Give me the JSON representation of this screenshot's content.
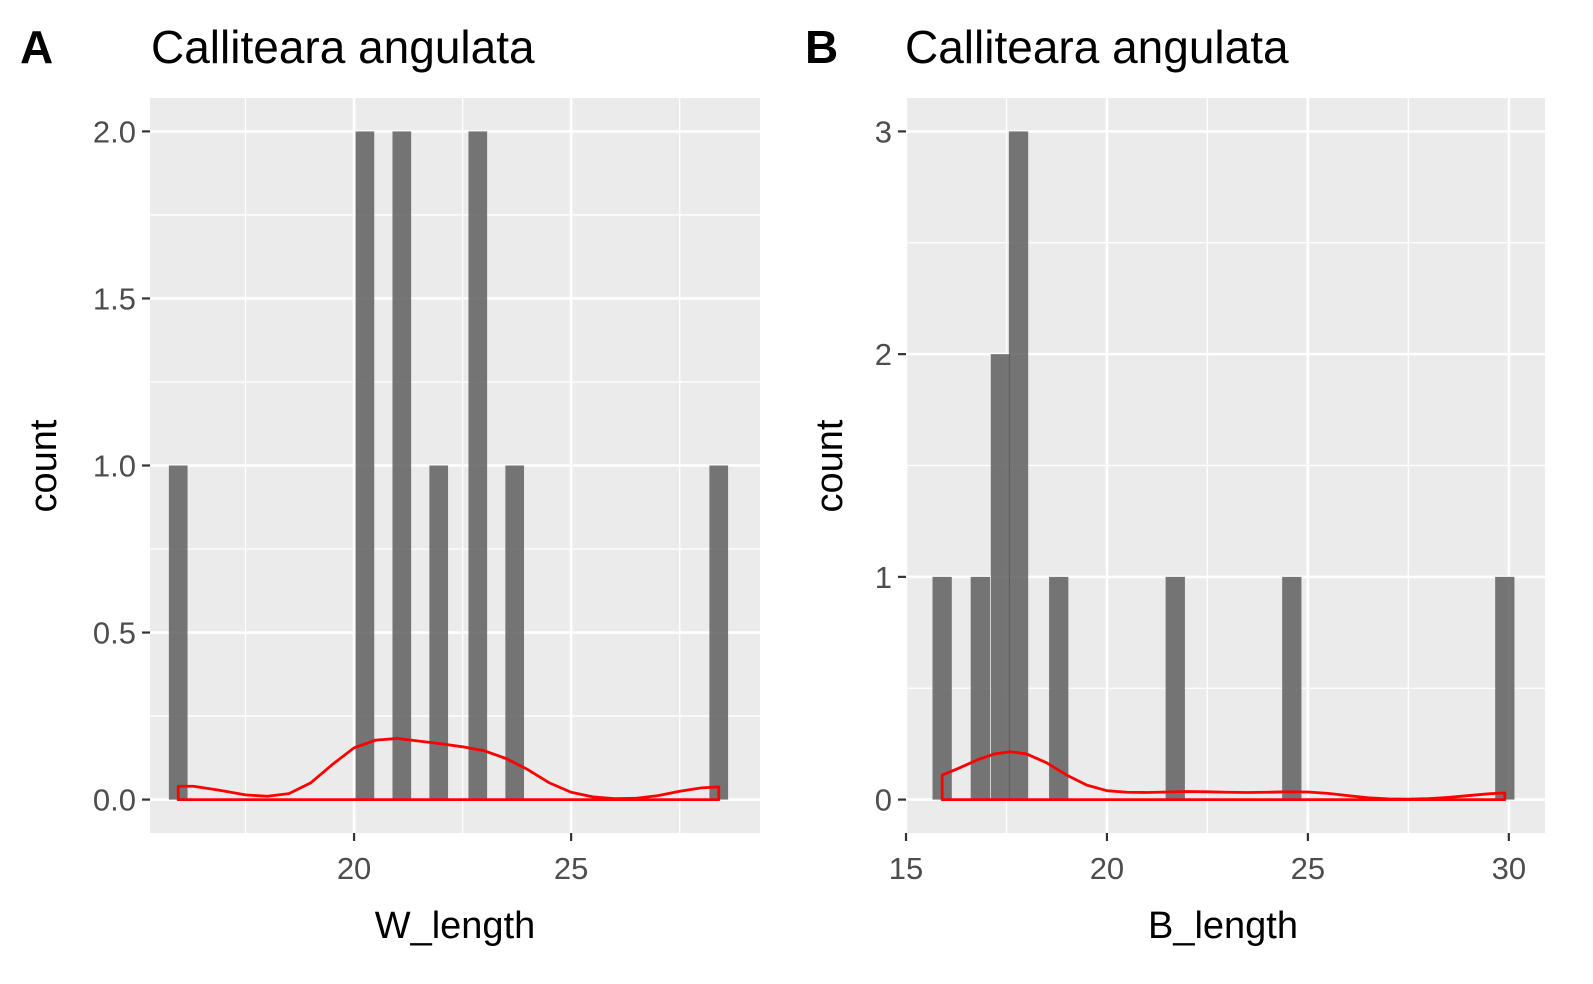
{
  "panels": [
    {
      "letter": "A",
      "title": "Calliteara angulata",
      "chart_data": {
        "type": "bar",
        "title": "Calliteara angulata",
        "xlabel": "W_length",
        "ylabel": "count",
        "xlim": [
          15.3,
          29.35
        ],
        "ylim": [
          -0.1,
          2.1
        ],
        "xticks": [
          20,
          25
        ],
        "xtick_labels": [
          "20",
          "25"
        ],
        "xminor": [
          17.5,
          22.5,
          27.5
        ],
        "yticks": [
          0,
          0.5,
          1,
          1.5,
          2
        ],
        "ytick_labels": [
          "0.0",
          "0.5",
          "1.0",
          "1.5",
          "2.0"
        ],
        "yminor": [
          0.25,
          0.75,
          1.25,
          1.75
        ],
        "bin_width": 0.43,
        "bars": [
          {
            "x": 15.95,
            "count": 1
          },
          {
            "x": 20.25,
            "count": 2
          },
          {
            "x": 21.1,
            "count": 2
          },
          {
            "x": 21.95,
            "count": 1
          },
          {
            "x": 22.85,
            "count": 2
          },
          {
            "x": 23.7,
            "count": 1
          },
          {
            "x": 28.4,
            "count": 1
          }
        ],
        "density_curve": {
          "color": "#ff0000",
          "x": [
            15.95,
            16.3,
            16.9,
            17.5,
            18.0,
            18.5,
            19.0,
            19.5,
            20.0,
            20.5,
            21.0,
            21.5,
            22.0,
            22.5,
            23.0,
            23.5,
            24.0,
            24.5,
            25.0,
            25.5,
            26.0,
            26.5,
            27.0,
            27.5,
            28.0,
            28.4
          ],
          "y": [
            0.04,
            0.04,
            0.028,
            0.014,
            0.01,
            0.018,
            0.05,
            0.105,
            0.155,
            0.178,
            0.183,
            0.175,
            0.167,
            0.158,
            0.146,
            0.123,
            0.09,
            0.05,
            0.022,
            0.008,
            0.003,
            0.004,
            0.012,
            0.025,
            0.035,
            0.038
          ]
        },
        "bar_color": "#595959",
        "panel_bg": "#ebebeb",
        "grid_color": "#ffffff"
      }
    },
    {
      "letter": "B",
      "title": "Calliteara angulata",
      "chart_data": {
        "type": "bar",
        "title": "Calliteara angulata",
        "xlabel": "B_length",
        "ylabel": "count",
        "xlim": [
          15.0,
          30.9
        ],
        "ylim": [
          -0.15,
          3.15
        ],
        "xticks": [
          15,
          20,
          25,
          30
        ],
        "xtick_labels": [
          "15",
          "20",
          "25",
          "30"
        ],
        "xminor": [
          17.5,
          22.5,
          27.5
        ],
        "yticks": [
          0,
          1,
          2,
          3
        ],
        "ytick_labels": [
          "0",
          "1",
          "2",
          "3"
        ],
        "yminor": [
          0.5,
          1.5,
          2.5
        ],
        "bin_width": 0.48,
        "bars": [
          {
            "x": 15.9,
            "count": 1
          },
          {
            "x": 16.85,
            "count": 1
          },
          {
            "x": 17.35,
            "count": 2
          },
          {
            "x": 17.8,
            "count": 3
          },
          {
            "x": 18.8,
            "count": 1
          },
          {
            "x": 21.7,
            "count": 1
          },
          {
            "x": 24.6,
            "count": 1
          },
          {
            "x": 29.9,
            "count": 1
          }
        ],
        "density_curve": {
          "color": "#ff0000",
          "x": [
            15.9,
            16.3,
            16.8,
            17.2,
            17.6,
            18.0,
            18.5,
            19.0,
            19.5,
            20.0,
            20.5,
            21.0,
            21.5,
            22.0,
            22.5,
            23.0,
            23.5,
            24.0,
            24.5,
            25.0,
            25.5,
            26.0,
            26.5,
            27.0,
            27.5,
            28.0,
            28.5,
            29.0,
            29.5,
            29.9
          ],
          "y": [
            0.11,
            0.14,
            0.18,
            0.205,
            0.215,
            0.205,
            0.165,
            0.11,
            0.065,
            0.04,
            0.033,
            0.032,
            0.034,
            0.036,
            0.035,
            0.033,
            0.032,
            0.033,
            0.035,
            0.034,
            0.028,
            0.018,
            0.008,
            0.003,
            0.002,
            0.004,
            0.01,
            0.018,
            0.026,
            0.03
          ]
        },
        "bar_color": "#595959",
        "panel_bg": "#ebebeb",
        "grid_color": "#ffffff"
      }
    }
  ]
}
